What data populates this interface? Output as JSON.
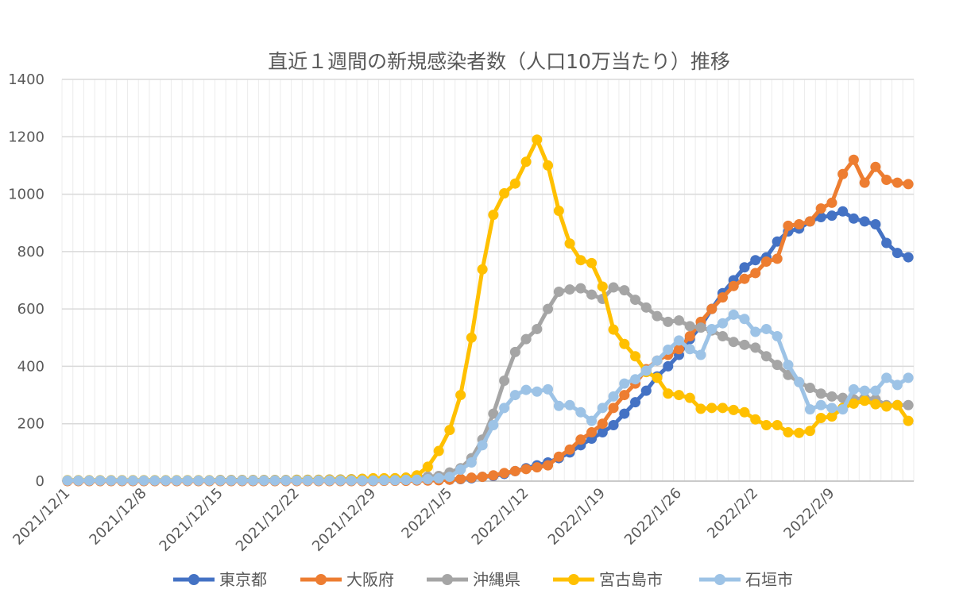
{
  "chart_data": {
    "type": "line",
    "title": "直近１週間の新規感染者数（人口10万当たり）推移",
    "xlabel": "",
    "ylabel": "",
    "ylim": [
      0,
      1400
    ],
    "yticks": [
      0,
      200,
      400,
      600,
      800,
      1000,
      1200,
      1400
    ],
    "grid": true,
    "legend": "bottom",
    "xtick_labels": [
      "2021/12/1",
      "2021/12/8",
      "2021/12/15",
      "2021/12/22",
      "2021/12/29",
      "2022/1/5",
      "2022/1/12",
      "2022/1/19",
      "2022/1/26",
      "2022/2/2",
      "2022/2/9"
    ],
    "categories": [
      "2021/12/1",
      "2021/12/2",
      "2021/12/3",
      "2021/12/4",
      "2021/12/5",
      "2021/12/6",
      "2021/12/7",
      "2021/12/8",
      "2021/12/9",
      "2021/12/10",
      "2021/12/11",
      "2021/12/12",
      "2021/12/13",
      "2021/12/14",
      "2021/12/15",
      "2021/12/16",
      "2021/12/17",
      "2021/12/18",
      "2021/12/19",
      "2021/12/20",
      "2021/12/21",
      "2021/12/22",
      "2021/12/23",
      "2021/12/24",
      "2021/12/25",
      "2021/12/26",
      "2021/12/27",
      "2021/12/28",
      "2021/12/29",
      "2021/12/30",
      "2021/12/31",
      "2022/1/1",
      "2022/1/2",
      "2022/1/3",
      "2022/1/4",
      "2022/1/5",
      "2022/1/6",
      "2022/1/7",
      "2022/1/8",
      "2022/1/9",
      "2022/1/10",
      "2022/1/11",
      "2022/1/12",
      "2022/1/13",
      "2022/1/14",
      "2022/1/15",
      "2022/1/16",
      "2022/1/17",
      "2022/1/18",
      "2022/1/19",
      "2022/1/20",
      "2022/1/21",
      "2022/1/22",
      "2022/1/23",
      "2022/1/24",
      "2022/1/25",
      "2022/1/26",
      "2022/1/27",
      "2022/1/28",
      "2022/1/29",
      "2022/1/30",
      "2022/1/31",
      "2022/2/1",
      "2022/2/2",
      "2022/2/3",
      "2022/2/4",
      "2022/2/5",
      "2022/2/6",
      "2022/2/7",
      "2022/2/8",
      "2022/2/9",
      "2022/2/10",
      "2022/2/11",
      "2022/2/12",
      "2022/2/13",
      "2022/2/14",
      "2022/2/15",
      "2022/2/16"
    ],
    "series": [
      {
        "name": "東京都",
        "color": "#4472C4",
        "values": [
          1,
          1,
          1,
          1,
          1,
          1,
          1,
          1,
          1,
          1,
          1,
          1,
          1,
          1,
          1,
          1,
          1,
          1,
          1,
          1,
          1,
          1,
          1,
          1,
          1,
          1,
          1,
          1,
          1,
          2,
          2,
          2,
          3,
          3,
          4,
          5,
          7,
          10,
          15,
          18,
          25,
          35,
          45,
          55,
          65,
          80,
          100,
          125,
          148,
          170,
          195,
          235,
          275,
          315,
          365,
          400,
          440,
          495,
          540,
          600,
          655,
          700,
          745,
          770,
          780,
          835,
          870,
          880,
          905,
          920,
          925,
          940,
          915,
          905,
          895,
          830,
          795,
          780
        ]
      },
      {
        "name": "大阪府",
        "color": "#ED7D31",
        "values": [
          0,
          0,
          0,
          0,
          0,
          0,
          0,
          0,
          0,
          0,
          0,
          0,
          0,
          0,
          0,
          0,
          0,
          0,
          0,
          0,
          0,
          0,
          0,
          0,
          0,
          0,
          0,
          0,
          0,
          1,
          1,
          1,
          2,
          2,
          3,
          5,
          8,
          12,
          15,
          20,
          28,
          35,
          42,
          48,
          55,
          85,
          110,
          145,
          170,
          200,
          255,
          300,
          340,
          390,
          420,
          440,
          460,
          505,
          555,
          600,
          640,
          680,
          705,
          725,
          765,
          775,
          890,
          895,
          905,
          950,
          970,
          1070,
          1120,
          1040,
          1095,
          1050,
          1040,
          1035
        ]
      },
      {
        "name": "沖縄県",
        "color": "#A5A5A5",
        "values": [
          3,
          3,
          3,
          3,
          3,
          3,
          3,
          3,
          3,
          3,
          3,
          3,
          3,
          3,
          4,
          4,
          4,
          4,
          4,
          4,
          4,
          5,
          5,
          5,
          6,
          6,
          7,
          8,
          8,
          9,
          10,
          12,
          14,
          16,
          18,
          30,
          45,
          80,
          145,
          235,
          350,
          450,
          495,
          530,
          600,
          660,
          668,
          672,
          650,
          635,
          675,
          665,
          632,
          605,
          575,
          555,
          560,
          540,
          535,
          525,
          505,
          485,
          475,
          465,
          435,
          405,
          370,
          345,
          325,
          305,
          295,
          290,
          285,
          290,
          285,
          265,
          265,
          265
        ]
      },
      {
        "name": "宮古島市",
        "color": "#FFC000",
        "values": [
          3,
          3,
          3,
          3,
          3,
          3,
          3,
          3,
          3,
          3,
          3,
          3,
          3,
          3,
          3,
          3,
          3,
          3,
          3,
          3,
          3,
          4,
          4,
          4,
          5,
          5,
          6,
          8,
          10,
          10,
          10,
          12,
          20,
          50,
          105,
          178,
          300,
          500,
          738,
          928,
          1003,
          1037,
          1113,
          1190,
          1100,
          942,
          828,
          770,
          760,
          678,
          528,
          478,
          435,
          380,
          360,
          305,
          300,
          290,
          252,
          255,
          255,
          248,
          240,
          215,
          195,
          195,
          170,
          168,
          175,
          220,
          225,
          255,
          270,
          280,
          268,
          260,
          265,
          210
        ]
      },
      {
        "name": "石垣市",
        "color": "#9DC3E6",
        "values": [
          2,
          2,
          2,
          2,
          2,
          2,
          2,
          2,
          2,
          2,
          2,
          2,
          2,
          2,
          2,
          2,
          2,
          2,
          2,
          2,
          2,
          2,
          2,
          2,
          2,
          2,
          2,
          2,
          2,
          3,
          3,
          4,
          5,
          7,
          10,
          15,
          40,
          65,
          125,
          195,
          255,
          300,
          318,
          312,
          320,
          262,
          265,
          240,
          210,
          255,
          295,
          340,
          355,
          385,
          420,
          458,
          490,
          460,
          440,
          530,
          550,
          580,
          565,
          520,
          530,
          505,
          405,
          345,
          250,
          265,
          255,
          250,
          320,
          315,
          315,
          360,
          335,
          360
        ]
      }
    ]
  }
}
